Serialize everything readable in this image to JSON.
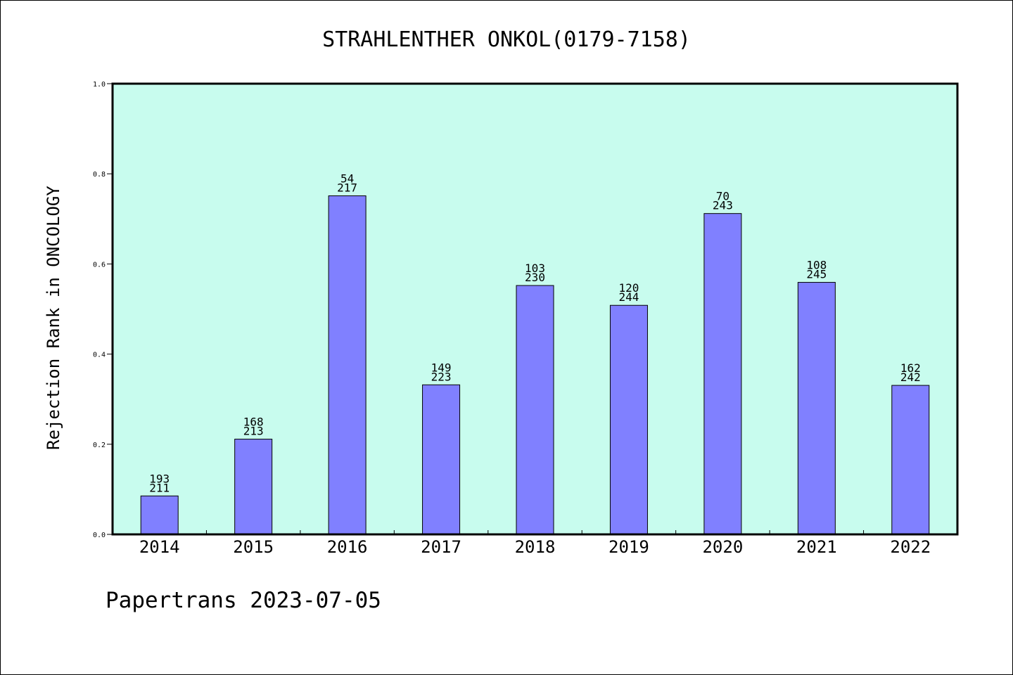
{
  "chart_data": {
    "type": "bar",
    "title": "STRAHLENTHER ONKOL(0179-7158)",
    "xlabel": "",
    "ylabel": "Rejection Rank in ONCOLOGY",
    "footer": "Papertrans 2023-07-05",
    "categories": [
      "2014",
      "2015",
      "2016",
      "2017",
      "2018",
      "2019",
      "2020",
      "2021",
      "2022"
    ],
    "values": [
      0.0853,
      0.2113,
      0.7512,
      0.3318,
      0.5522,
      0.5082,
      0.7119,
      0.5592,
      0.3306
    ],
    "labels_top": [
      "193",
      "168",
      "54",
      "149",
      "103",
      "120",
      "70",
      "108",
      "162"
    ],
    "labels_bottom": [
      "211",
      "213",
      "217",
      "223",
      "230",
      "244",
      "243",
      "245",
      "242"
    ],
    "ylim": [
      0,
      1.0
    ],
    "yticks": [
      "0.0",
      "0.2",
      "0.4",
      "0.6",
      "0.8",
      "1.0"
    ],
    "grid": false,
    "colors": {
      "plot_background": "#c8fcee",
      "bar_fill": "#8080ff",
      "bar_stroke": "#000000",
      "axis": "#000000"
    }
  }
}
